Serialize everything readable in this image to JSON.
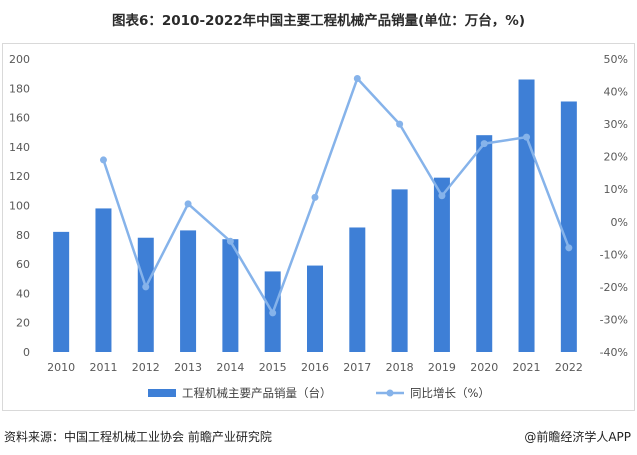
{
  "page": {
    "title": "图表6：2010-2022年中国主要工程机械产品销量(单位：万台，%)",
    "source": "资料来源：中国工程机械工业协会 前瞻产业研究院",
    "credit": "@前瞻经济学人APP"
  },
  "colors": {
    "bar": "#3e7fd6",
    "line": "#86b3ea",
    "grid": "#e6e6e6"
  },
  "chart_data": {
    "type": "bar",
    "categories": [
      "2010",
      "2011",
      "2012",
      "2013",
      "2014",
      "2015",
      "2016",
      "2017",
      "2018",
      "2019",
      "2020",
      "2021",
      "2022"
    ],
    "series": [
      {
        "name": "工程机械主要产品销量（台）",
        "type": "bar",
        "axis": "left",
        "values": [
          82,
          98,
          78,
          83,
          77,
          55,
          59,
          85,
          111,
          119,
          148,
          186,
          171
        ]
      },
      {
        "name": "同比增长（%）",
        "type": "line",
        "axis": "right",
        "values": [
          null,
          19,
          -20,
          5.5,
          -6,
          -28,
          7.5,
          44,
          30,
          8,
          24,
          26,
          -8
        ]
      }
    ],
    "y_left": {
      "lim": [
        0,
        200
      ],
      "ticks": [
        "0",
        "20",
        "40",
        "60",
        "80",
        "100",
        "120",
        "140",
        "160",
        "180",
        "200"
      ]
    },
    "y_right": {
      "lim": [
        -40,
        50
      ],
      "ticks": [
        "-40%",
        "-30%",
        "-20%",
        "-10%",
        "0%",
        "10%",
        "20%",
        "30%",
        "40%",
        "50%"
      ]
    },
    "grid": false,
    "legend_position": "bottom"
  }
}
